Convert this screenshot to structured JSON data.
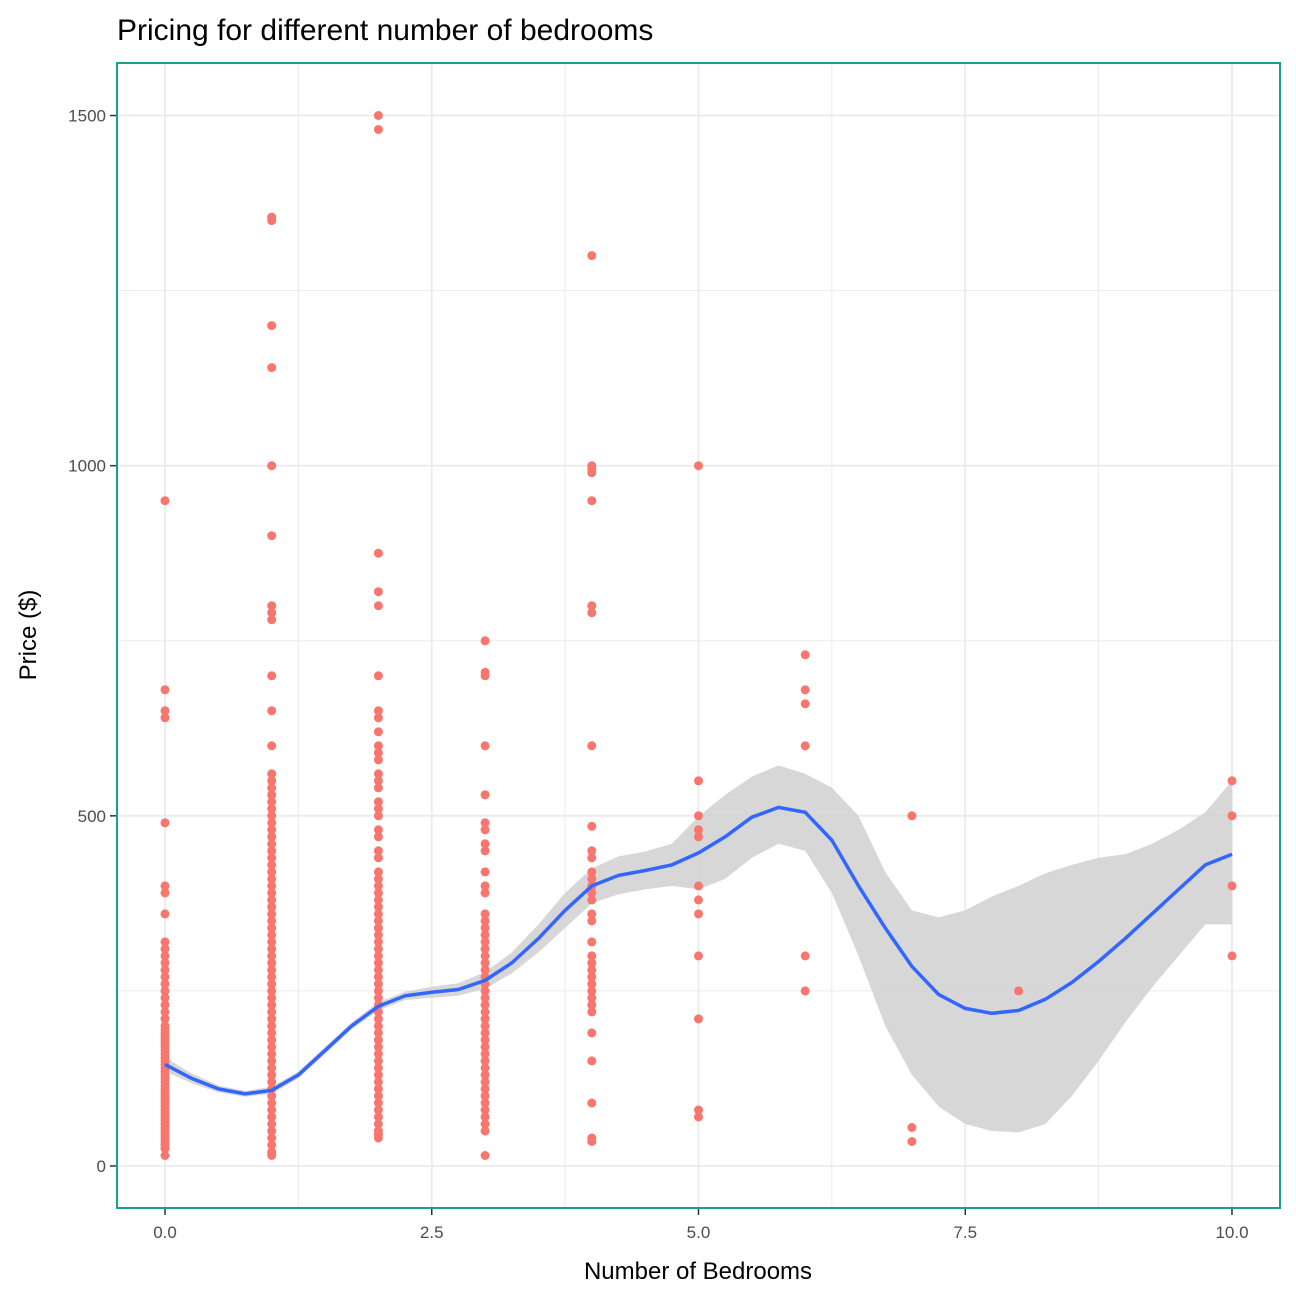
{
  "chart_data": {
    "type": "scatter",
    "title": "Pricing for different number of bedrooms",
    "xlabel": "Number of Bedrooms",
    "ylabel": "Price ($)",
    "xlim": [
      -0.45,
      10.45
    ],
    "ylim": [
      -60,
      1575
    ],
    "x_ticks": [
      0,
      2.5,
      5,
      7.5,
      10
    ],
    "x_tick_labels": [
      "0.0",
      "2.5",
      "5.0",
      "7.5",
      "10.0"
    ],
    "y_ticks": [
      0,
      500,
      1000,
      1500
    ],
    "y_tick_labels": [
      "0",
      "500",
      "1000",
      "1500"
    ],
    "grid": true,
    "legend": "none",
    "colors": {
      "points": "#f8766d",
      "smooth_line": "#3366ff",
      "confidence_band": "#d3d3d3",
      "panel_border": "#17a08c",
      "grid": "#ebebeb"
    },
    "series": [
      {
        "type": "scatter",
        "groups": [
          {
            "x": 0,
            "y": [
              950,
              680,
              650,
              640,
              490,
              400,
              390,
              360,
              320,
              310,
              300,
              290,
              280,
              270,
              260,
              250,
              240,
              230,
              220,
              210,
              200,
              195,
              190,
              185,
              180,
              175,
              170,
              165,
              160,
              155,
              150,
              145,
              140,
              135,
              130,
              125,
              120,
              115,
              110,
              105,
              100,
              95,
              90,
              85,
              80,
              75,
              70,
              65,
              60,
              55,
              50,
              45,
              40,
              35,
              30,
              25,
              15
            ]
          },
          {
            "x": 1,
            "y": [
              1355,
              1350,
              1200,
              1140,
              1000,
              900,
              800,
              790,
              780,
              700,
              650,
              600,
              560,
              550,
              540,
              530,
              520,
              510,
              500,
              490,
              480,
              470,
              460,
              450,
              440,
              430,
              420,
              410,
              400,
              390,
              380,
              370,
              360,
              350,
              340,
              330,
              320,
              310,
              300,
              290,
              280,
              270,
              260,
              250,
              240,
              230,
              220,
              210,
              200,
              190,
              180,
              170,
              160,
              150,
              140,
              130,
              120,
              110,
              100,
              90,
              80,
              70,
              60,
              50,
              40,
              30,
              20,
              15
            ]
          },
          {
            "x": 2,
            "y": [
              1500,
              1480,
              875,
              820,
              800,
              700,
              650,
              640,
              620,
              600,
              590,
              580,
              560,
              550,
              540,
              520,
              510,
              500,
              480,
              470,
              450,
              440,
              420,
              410,
              400,
              390,
              380,
              370,
              360,
              350,
              340,
              330,
              320,
              310,
              300,
              290,
              280,
              270,
              260,
              250,
              240,
              230,
              220,
              210,
              200,
              190,
              180,
              170,
              160,
              150,
              140,
              130,
              120,
              110,
              100,
              90,
              80,
              70,
              60,
              50,
              45,
              40
            ]
          },
          {
            "x": 3,
            "y": [
              750,
              705,
              700,
              600,
              530,
              490,
              480,
              460,
              450,
              420,
              400,
              390,
              360,
              350,
              340,
              330,
              320,
              310,
              300,
              290,
              280,
              270,
              260,
              250,
              240,
              230,
              220,
              210,
              200,
              190,
              180,
              170,
              160,
              150,
              140,
              130,
              120,
              110,
              100,
              90,
              80,
              70,
              60,
              50,
              15
            ]
          },
          {
            "x": 4,
            "y": [
              1300,
              1000,
              995,
              990,
              950,
              800,
              790,
              600,
              485,
              450,
              440,
              420,
              410,
              400,
              390,
              380,
              360,
              350,
              320,
              300,
              290,
              280,
              270,
              260,
              250,
              240,
              230,
              220,
              190,
              150,
              90,
              40,
              35
            ]
          },
          {
            "x": 5,
            "y": [
              1000,
              550,
              500,
              480,
              470,
              400,
              380,
              360,
              300,
              210,
              80,
              70
            ]
          },
          {
            "x": 6,
            "y": [
              730,
              680,
              660,
              600,
              300,
              250
            ]
          },
          {
            "x": 7,
            "y": [
              500,
              55,
              35
            ]
          },
          {
            "x": 8,
            "y": [
              250
            ]
          },
          {
            "x": 10,
            "y": [
              550,
              500,
              400,
              300
            ]
          }
        ]
      },
      {
        "type": "smooth_line",
        "x": [
          0,
          0.25,
          0.5,
          0.75,
          1.0,
          1.25,
          1.5,
          1.75,
          2.0,
          2.25,
          2.5,
          2.75,
          3.0,
          3.25,
          3.5,
          3.75,
          4.0,
          4.25,
          4.5,
          4.75,
          5.0,
          5.25,
          5.5,
          5.75,
          6.0,
          6.25,
          6.5,
          6.75,
          7.0,
          7.25,
          7.5,
          7.75,
          8.0,
          8.25,
          8.5,
          8.75,
          9.0,
          9.25,
          9.5,
          9.75,
          10.0
        ],
        "y": [
          145,
          125,
          110,
          103,
          108,
          130,
          165,
          200,
          228,
          243,
          248,
          252,
          265,
          290,
          325,
          365,
          400,
          415,
          422,
          430,
          447,
          470,
          498,
          512,
          505,
          465,
          400,
          340,
          285,
          245,
          225,
          218,
          222,
          238,
          262,
          292,
          325,
          360,
          395,
          430,
          445
        ],
        "ci_lower": [
          135,
          118,
          105,
          99,
          103,
          125,
          160,
          195,
          222,
          237,
          240,
          243,
          253,
          275,
          305,
          340,
          375,
          388,
          395,
          400,
          395,
          410,
          440,
          460,
          450,
          390,
          300,
          200,
          130,
          85,
          60,
          50,
          48,
          60,
          100,
          150,
          205,
          255,
          300,
          345,
          345
        ],
        "ci_upper": [
          155,
          132,
          115,
          107,
          113,
          135,
          170,
          205,
          234,
          249,
          256,
          261,
          277,
          305,
          345,
          390,
          425,
          442,
          449,
          460,
          499,
          530,
          556,
          572,
          560,
          540,
          500,
          420,
          365,
          355,
          365,
          385,
          400,
          418,
          430,
          440,
          445,
          460,
          480,
          505,
          550
        ]
      }
    ]
  }
}
